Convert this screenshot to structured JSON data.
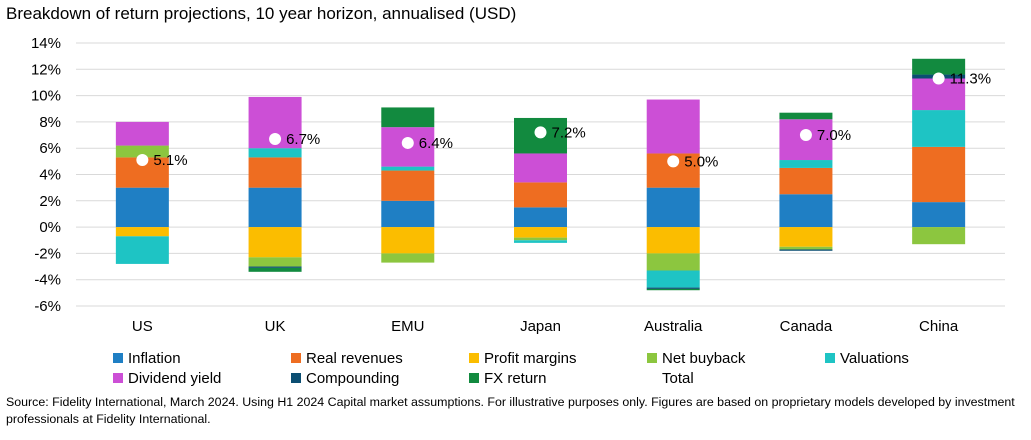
{
  "chart_data": {
    "type": "bar",
    "stacked": true,
    "title": "Breakdown of return projections, 10 year horizon, annualised (USD)",
    "xlabel": "",
    "ylabel": "",
    "ylim": [
      -6,
      14
    ],
    "yticks": [
      14,
      12,
      10,
      8,
      6,
      4,
      2,
      0,
      -2,
      -4,
      -6
    ],
    "ytick_labels": [
      "14%",
      "12%",
      "10%",
      "8%",
      "6%",
      "4%",
      "2%",
      "0%",
      "-2%",
      "-4%",
      "-6%"
    ],
    "grid": true,
    "legend_position": "bottom",
    "categories": [
      "US",
      "UK",
      "EMU",
      "Japan",
      "Australia",
      "Canada",
      "China"
    ],
    "series": [
      {
        "name": "Inflation",
        "color": "#1f7fc4",
        "values": [
          3.0,
          3.0,
          2.0,
          1.5,
          3.0,
          2.5,
          1.9
        ]
      },
      {
        "name": "Real revenues",
        "color": "#ee6d21",
        "values": [
          2.3,
          2.3,
          2.3,
          1.9,
          2.6,
          2.0,
          4.2
        ]
      },
      {
        "name": "Profit margins",
        "color": "#fbbd00",
        "values": [
          -0.7,
          -2.3,
          -2.0,
          -0.8,
          -2.0,
          -1.5,
          0.0
        ]
      },
      {
        "name": "Net buyback",
        "color": "#8cc63f",
        "values": [
          0.9,
          -0.7,
          -0.7,
          -0.2,
          -1.3,
          -0.2,
          -1.3
        ]
      },
      {
        "name": "Valuations",
        "color": "#1ec4c4",
        "values": [
          -2.1,
          0.7,
          0.3,
          -0.2,
          -1.3,
          0.6,
          2.8
        ]
      },
      {
        "name": "Dividend yield",
        "color": "#cc4fd6",
        "values": [
          1.8,
          3.9,
          3.0,
          2.2,
          4.1,
          3.1,
          2.4
        ]
      },
      {
        "name": "Compounding",
        "color": "#0b4e72",
        "values": [
          0.0,
          -0.1,
          0.0,
          0.0,
          -0.1,
          -0.1,
          0.3
        ]
      },
      {
        "name": "FX return",
        "color": "#128a3f",
        "values": [
          0.0,
          -0.3,
          1.5,
          2.7,
          -0.1,
          0.5,
          1.2
        ]
      }
    ],
    "total": {
      "name": "Total",
      "values": [
        5.1,
        6.7,
        6.4,
        7.2,
        5.0,
        7.0,
        11.3
      ],
      "labels": [
        "5.1%",
        "6.7%",
        "6.4%",
        "7.2%",
        "5.0%",
        "7.0%",
        "11.3%"
      ]
    }
  },
  "source_note": "Source: Fidelity International, March 2024. Using H1 2024 Capital market assumptions. For illustrative purposes only. Figures are based on proprietary models developed by investment professionals at Fidelity International."
}
